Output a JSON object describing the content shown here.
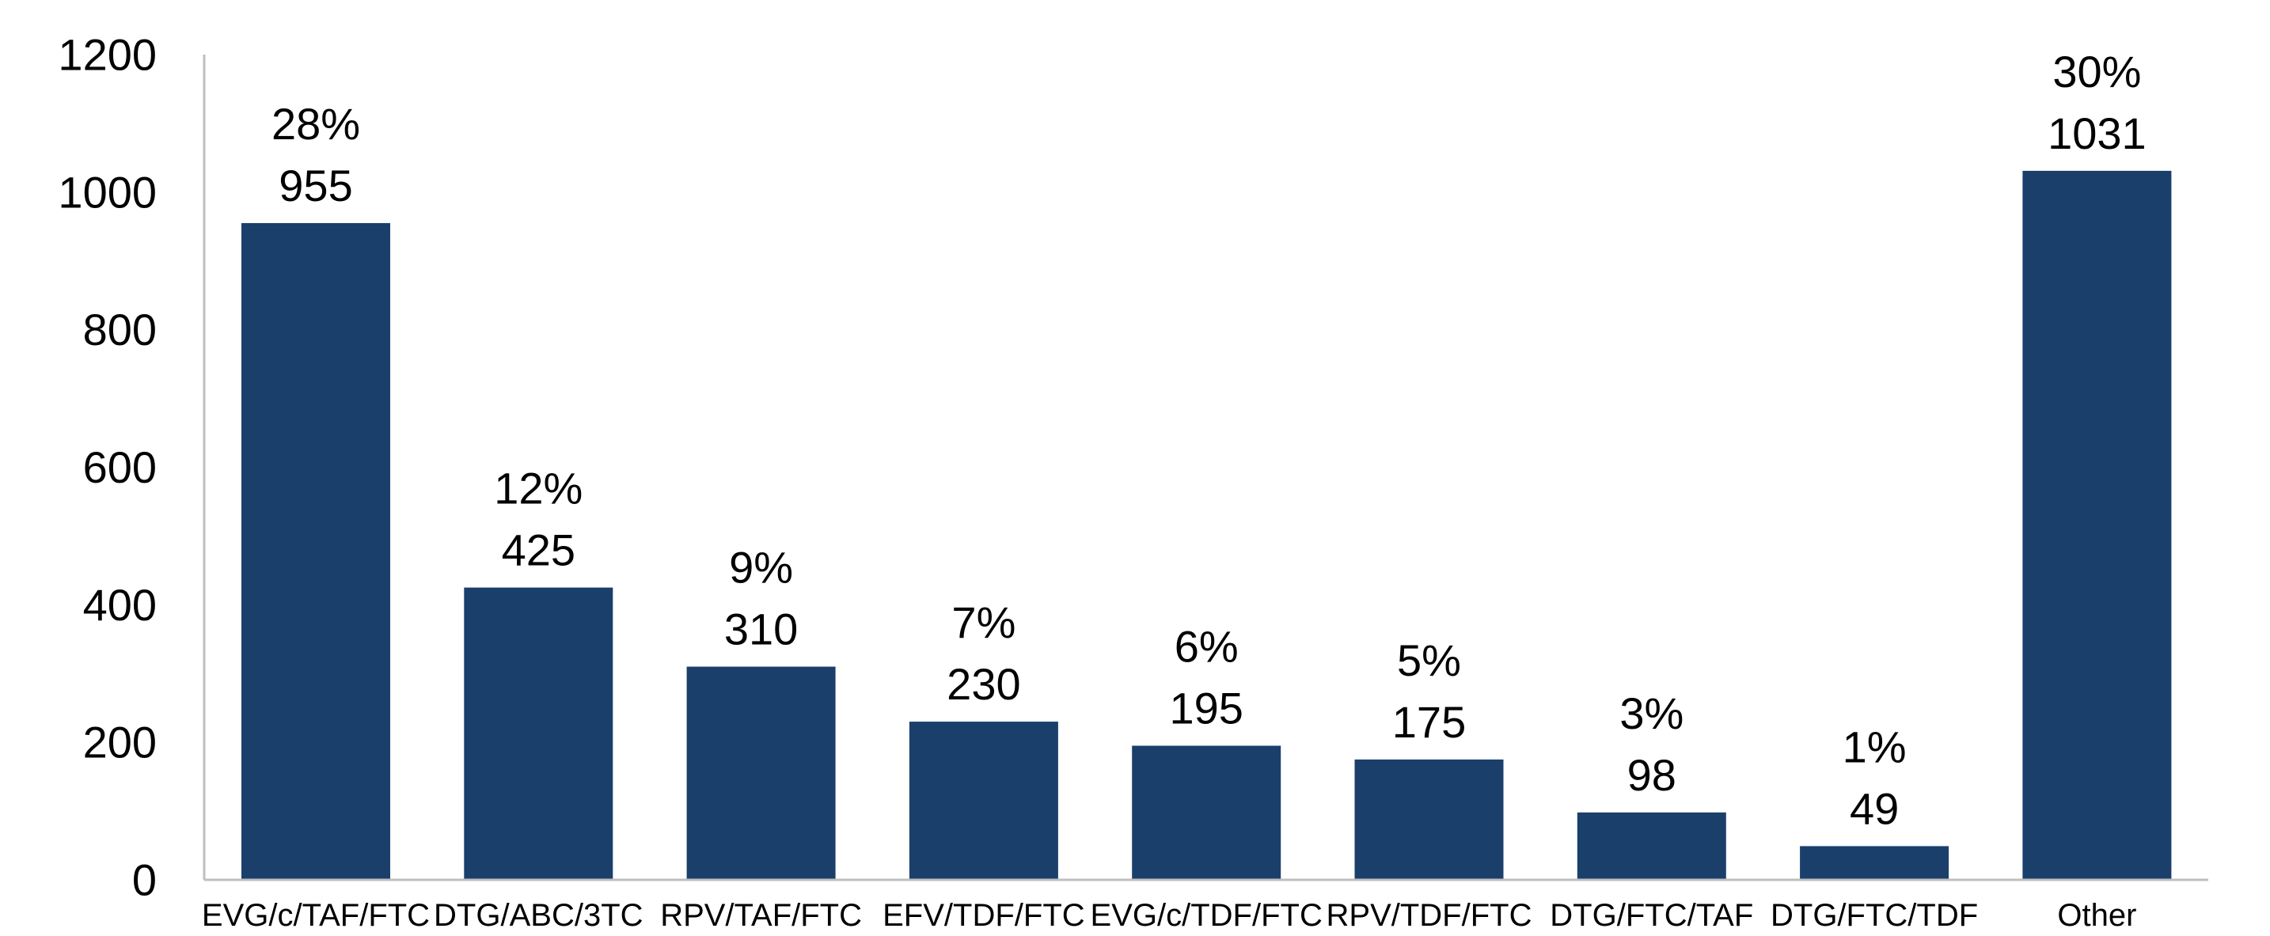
{
  "chart_data": {
    "type": "bar",
    "title": "",
    "xlabel": "",
    "ylabel": "",
    "ylim": [
      0,
      1200
    ],
    "yticks": [
      0,
      200,
      400,
      600,
      800,
      1000,
      1200
    ],
    "grid": false,
    "legend": "none",
    "categories": [
      "EVG/c/TAF/FTC",
      "DTG/ABC/3TC",
      "RPV/TAF/FTC",
      "EFV/TDF/FTC",
      "EVG/c/TDF/FTC",
      "RPV/TDF/FTC",
      "DTG/FTC/TAF",
      "DTG/FTC/TDF",
      "Other"
    ],
    "values": [
      955,
      425,
      310,
      230,
      195,
      175,
      98,
      49,
      1031
    ],
    "percent_labels": [
      "28%",
      "12%",
      "9%",
      "7%",
      "6%",
      "5%",
      "3%",
      "1%",
      "30%"
    ],
    "value_labels": [
      "955",
      "425",
      "310",
      "230",
      "195",
      "175",
      "98",
      "49",
      "1031"
    ],
    "colors": {
      "bar": "#1B3F6B",
      "axis": "#BFBFBF"
    }
  }
}
